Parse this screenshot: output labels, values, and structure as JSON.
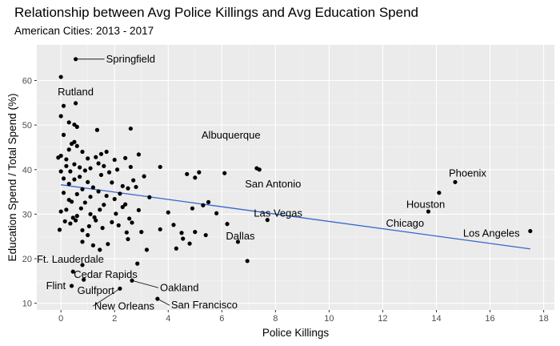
{
  "chart_data": {
    "type": "scatter",
    "title": "Relationship between Avg Police Killings and Avg Education Spend",
    "subtitle": "American Cities: 2013 - 2017",
    "xlabel": "Police Killings",
    "ylabel": "Education Spend / Total Spend (%)",
    "xlim": [
      -0.9,
      18.4
    ],
    "ylim": [
      8.5,
      68
    ],
    "x_ticks": [
      0,
      2,
      4,
      6,
      8,
      10,
      12,
      14,
      16,
      18
    ],
    "y_ticks": [
      10,
      20,
      30,
      40,
      50,
      60
    ],
    "grid": true,
    "legend": "none",
    "point_color": "#000000",
    "trend_color": "#3366cc",
    "trend_line": {
      "x": [
        0,
        17.5
      ],
      "y": [
        36.6,
        22.2
      ]
    },
    "labeled_points": [
      {
        "label": "Springfield",
        "x": 0.55,
        "y": 64.8
      },
      {
        "label": "Rutland",
        "x": 0.0,
        "y": 60.8
      },
      {
        "label": "Albuquerque",
        "x": 7.3,
        "y": 40.3
      },
      {
        "label": "San Antonio",
        "x": 7.4,
        "y": 40.0
      },
      {
        "label": "Phoenix",
        "x": 14.7,
        "y": 37.2
      },
      {
        "label": "Houston",
        "x": 14.1,
        "y": 34.8
      },
      {
        "label": "Chicago",
        "x": 13.7,
        "y": 30.6
      },
      {
        "label": "Las Vegas",
        "x": 7.7,
        "y": 28.7
      },
      {
        "label": "Dallas",
        "x": 6.6,
        "y": 23.8
      },
      {
        "label": "Los Angeles",
        "x": 17.5,
        "y": 26.2
      },
      {
        "label": "Ft. Lauderdale",
        "x": 0.8,
        "y": 18.6
      },
      {
        "label": "Cedar Rapids",
        "x": 0.45,
        "y": 17.1
      },
      {
        "label": "Flint",
        "x": 0.4,
        "y": 13.9
      },
      {
        "label": "Gulfport",
        "x": 0.85,
        "y": 15.3
      },
      {
        "label": "Oakland",
        "x": 2.65,
        "y": 15.1
      },
      {
        "label": "New Orleans",
        "x": 2.2,
        "y": 13.3
      },
      {
        "label": "San Francisco",
        "x": 3.6,
        "y": 11.0
      }
    ],
    "points": [
      [
        0.55,
        64.8
      ],
      [
        0.0,
        60.8
      ],
      [
        7.3,
        40.3
      ],
      [
        7.4,
        40.0
      ],
      [
        14.7,
        37.2
      ],
      [
        14.1,
        34.8
      ],
      [
        13.7,
        30.6
      ],
      [
        7.7,
        28.7
      ],
      [
        6.6,
        23.8
      ],
      [
        17.5,
        26.2
      ],
      [
        0.8,
        18.6
      ],
      [
        0.45,
        17.1
      ],
      [
        0.4,
        13.9
      ],
      [
        0.85,
        15.3
      ],
      [
        2.65,
        15.1
      ],
      [
        2.2,
        13.3
      ],
      [
        3.6,
        11.0
      ],
      [
        0.0,
        52.0
      ],
      [
        0.1,
        54.3
      ],
      [
        0.55,
        54.9
      ],
      [
        0.3,
        50.6
      ],
      [
        0.5,
        50.1
      ],
      [
        0.6,
        49.6
      ],
      [
        1.35,
        48.9
      ],
      [
        2.6,
        49.2
      ],
      [
        0.1,
        47.8
      ],
      [
        0.0,
        43.1
      ],
      [
        -0.1,
        42.7
      ],
      [
        0.2,
        42.3
      ],
      [
        0.3,
        44.5
      ],
      [
        0.4,
        45.8
      ],
      [
        0.5,
        46.2
      ],
      [
        0.6,
        45.3
      ],
      [
        0.8,
        44.0
      ],
      [
        1.0,
        42.5
      ],
      [
        1.3,
        42.8
      ],
      [
        1.5,
        43.5
      ],
      [
        1.7,
        44.0
      ],
      [
        2.0,
        42.2
      ],
      [
        2.4,
        42.6
      ],
      [
        2.9,
        43.4
      ],
      [
        0.2,
        40.8
      ],
      [
        0.35,
        39.6
      ],
      [
        0.5,
        41.2
      ],
      [
        0.7,
        40.5
      ],
      [
        0.9,
        39.8
      ],
      [
        1.1,
        40.3
      ],
      [
        1.4,
        41.4
      ],
      [
        1.6,
        40.8
      ],
      [
        1.8,
        39.4
      ],
      [
        2.1,
        40.0
      ],
      [
        2.6,
        40.6
      ],
      [
        3.1,
        38.5
      ],
      [
        3.7,
        40.6
      ],
      [
        0.0,
        39.6
      ],
      [
        0.1,
        38.0
      ],
      [
        0.3,
        36.8
      ],
      [
        0.5,
        37.8
      ],
      [
        0.7,
        38.4
      ],
      [
        1.0,
        37.2
      ],
      [
        1.2,
        36.0
      ],
      [
        1.5,
        38.8
      ],
      [
        1.9,
        37.1
      ],
      [
        2.3,
        36.3
      ],
      [
        2.7,
        37.6
      ],
      [
        0.1,
        34.8
      ],
      [
        0.3,
        33.2
      ],
      [
        0.6,
        34.5
      ],
      [
        0.8,
        35.6
      ],
      [
        1.1,
        33.9
      ],
      [
        1.4,
        35.1
      ],
      [
        1.7,
        34.1
      ],
      [
        2.0,
        33.4
      ],
      [
        2.2,
        34.6
      ],
      [
        2.5,
        35.8
      ],
      [
        2.8,
        36.1
      ],
      [
        3.3,
        33.8
      ],
      [
        4.7,
        39.0
      ],
      [
        5.0,
        38.2
      ],
      [
        5.15,
        39.4
      ],
      [
        6.1,
        39.2
      ],
      [
        0.0,
        30.6
      ],
      [
        0.2,
        31.0
      ],
      [
        0.4,
        32.8
      ],
      [
        0.6,
        29.6
      ],
      [
        0.75,
        31.3
      ],
      [
        0.9,
        32.6
      ],
      [
        1.25,
        29.3
      ],
      [
        1.45,
        31.0
      ],
      [
        1.6,
        32.1
      ],
      [
        2.05,
        30.1
      ],
      [
        2.3,
        31.6
      ],
      [
        2.55,
        29.0
      ],
      [
        2.9,
        30.9
      ],
      [
        4.0,
        30.4
      ],
      [
        4.9,
        31.3
      ],
      [
        5.3,
        32.0
      ],
      [
        5.5,
        32.7
      ],
      [
        5.8,
        30.2
      ],
      [
        0.15,
        28.4
      ],
      [
        0.35,
        27.9
      ],
      [
        0.55,
        28.6
      ],
      [
        0.8,
        26.4
      ],
      [
        1.05,
        27.3
      ],
      [
        1.3,
        28.6
      ],
      [
        1.55,
        26.9
      ],
      [
        1.9,
        28.2
      ],
      [
        2.15,
        27.5
      ],
      [
        2.45,
        25.9
      ],
      [
        2.65,
        28.1
      ],
      [
        3.0,
        26.0
      ],
      [
        4.2,
        27.6
      ],
      [
        4.5,
        25.8
      ],
      [
        5.4,
        25.3
      ],
      [
        6.2,
        27.8
      ],
      [
        -0.05,
        26.5
      ],
      [
        0.8,
        23.8
      ],
      [
        1.0,
        25.3
      ],
      [
        1.2,
        23.0
      ],
      [
        1.45,
        22.0
      ],
      [
        1.75,
        23.3
      ],
      [
        2.5,
        24.4
      ],
      [
        3.2,
        22.0
      ],
      [
        4.3,
        22.3
      ],
      [
        4.55,
        24.5
      ],
      [
        4.8,
        23.4
      ],
      [
        5.0,
        26.0
      ],
      [
        6.95,
        19.5
      ],
      [
        3.7,
        26.6
      ],
      [
        2.85,
        18.9
      ],
      [
        1.1,
        30.0
      ],
      [
        0.45,
        29.2
      ],
      [
        2.4,
        32.2
      ]
    ]
  }
}
